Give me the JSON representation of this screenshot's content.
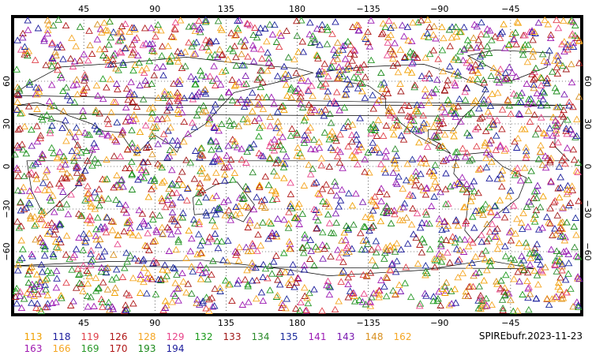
{
  "map": {
    "lon_ticks_top": [
      "45",
      "90",
      "135",
      "180",
      "−135",
      "−90",
      "−45"
    ],
    "lon_ticks_bottom": [
      "45",
      "90",
      "135",
      "180",
      "−135",
      "−90",
      "−45"
    ],
    "lat_ticks": [
      "60",
      "30",
      "0",
      "−30",
      "−60"
    ],
    "grid_lines": "dotted",
    "marker_symbol": "open triangle",
    "observations_legend": [
      {
        "code": "113",
        "color": "#f0a000"
      },
      {
        "code": "118",
        "color": "#1c1c9c"
      },
      {
        "code": "119",
        "color": "#e0404a"
      },
      {
        "code": "126",
        "color": "#b01818"
      },
      {
        "code": "128",
        "color": "#f5a623"
      },
      {
        "code": "129",
        "color": "#e8458a"
      },
      {
        "code": "132",
        "color": "#1a9a1a"
      },
      {
        "code": "133",
        "color": "#a01a1a"
      },
      {
        "code": "134",
        "color": "#2a8a2a"
      },
      {
        "code": "135",
        "color": "#1a2a9c"
      },
      {
        "code": "141",
        "color": "#9c1ab4"
      },
      {
        "code": "143",
        "color": "#7a1ab0"
      },
      {
        "code": "148",
        "color": "#d89020"
      },
      {
        "code": "162",
        "color": "#f5a623"
      },
      {
        "code": "163",
        "color": "#a01ab0"
      },
      {
        "code": "166",
        "color": "#f5a623"
      },
      {
        "code": "169",
        "color": "#2a9a2a"
      },
      {
        "code": "170",
        "color": "#b01818"
      },
      {
        "code": "193",
        "color": "#1a8a1a"
      },
      {
        "code": "194",
        "color": "#1c1c9c"
      }
    ],
    "source_label": "SPIREbufr.2023-11-23"
  }
}
